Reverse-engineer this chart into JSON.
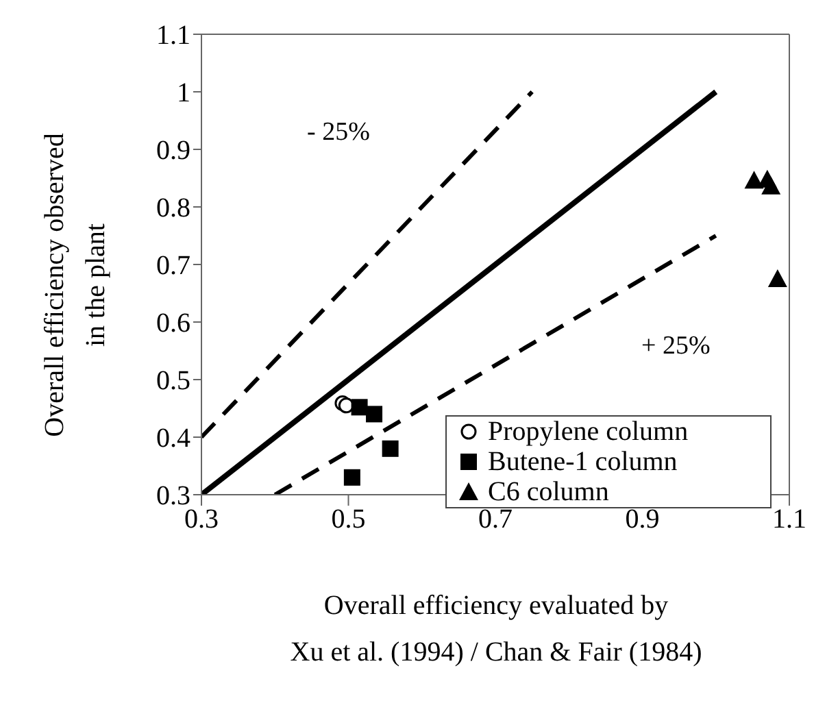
{
  "chart_data": {
    "type": "scatter",
    "xlabel": "Overall efficiency evaluated by\nXu et al. (1994) / Chan & Fair (1984)",
    "ylabel": "Overall efficiency observed\nin the plant",
    "xlim": [
      0.3,
      1.1
    ],
    "xticks": [
      0.3,
      0.5,
      0.7,
      0.9,
      1.1
    ],
    "ylim": [
      0.3,
      1.1
    ],
    "yticks": [
      0.3,
      0.4,
      0.5,
      0.6,
      0.7,
      0.8,
      0.9,
      1,
      1.1
    ],
    "legend": "bottom right",
    "series": [
      {
        "name": "Propylene column",
        "marker": "circle",
        "color": "#000000",
        "x": [
          0.492,
          0.497
        ],
        "values": [
          0.459,
          0.455
        ]
      },
      {
        "name": "Butene-1 column",
        "marker": "square",
        "color": "#000000",
        "x": [
          0.515,
          0.535,
          0.557,
          0.505
        ],
        "values": [
          0.452,
          0.44,
          0.38,
          0.33
        ]
      },
      {
        "name": "C6 column",
        "marker": "triangle",
        "color": "#000000",
        "x": [
          1.052,
          1.07,
          1.075,
          1.084
        ],
        "values": [
          0.846,
          0.848,
          0.836,
          0.675
        ]
      },
      {
        "type": "line",
        "line_style": "solid",
        "color": "#000000",
        "x": [
          0.3,
          1.0
        ],
        "values": [
          0.3,
          1.0
        ]
      },
      {
        "type": "line",
        "line_style": "dashed",
        "color": "#000000",
        "x": [
          0.3,
          0.75
        ],
        "values": [
          0.4,
          1.0
        ]
      },
      {
        "type": "line",
        "line_style": "dashed",
        "color": "#000000",
        "x": [
          0.4,
          1.0
        ],
        "values": [
          0.3,
          0.75
        ]
      }
    ],
    "annotations": [
      "- 25%",
      "+ 25%"
    ]
  }
}
